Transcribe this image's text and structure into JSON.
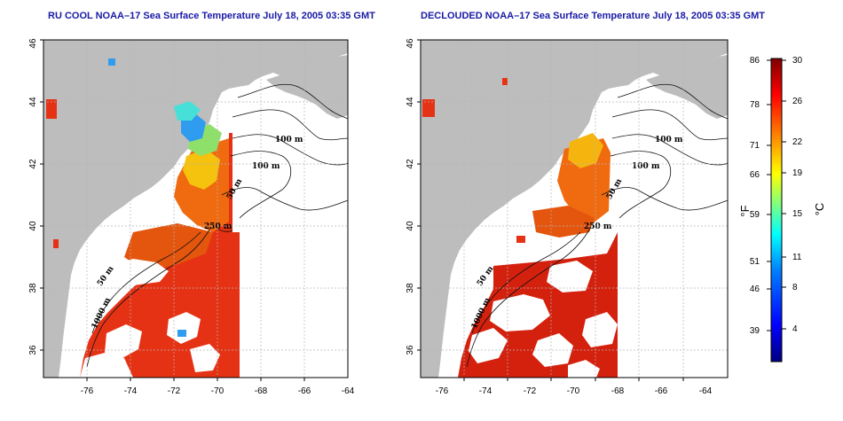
{
  "titles": {
    "left": "RU COOL NOAA–17 Sea Surface Temperature July 18, 2005 03:35 GMT",
    "right": "DECLOUDED NOAA–17 Sea Surface Temperature July 18, 2005 03:35 GMT"
  },
  "map": {
    "lon_range": [
      -77,
      -63
    ],
    "lat_range": [
      35,
      46
    ],
    "x_ticks": [
      "-76",
      "-74",
      "-72",
      "-70",
      "-68",
      "-66",
      "-64"
    ],
    "y_ticks": [
      "36",
      "38",
      "40",
      "42",
      "44",
      "46"
    ],
    "land_color": "#bdbdbd",
    "ocean_color": "#ffffff",
    "grid": "dotted",
    "contour_labels": {
      "c100_top": "100 m",
      "c100_mid": "100 m",
      "c50": "50 m",
      "c250": "250 m",
      "c50_south": "50 m",
      "c1000": "1000 m"
    },
    "data_swath_east_edge_lon": -68
  },
  "colorbar": {
    "fahrenheit_ticks": [
      "86",
      "78",
      "71",
      "66",
      "59",
      "51",
      "46",
      "39"
    ],
    "celsius_ticks": [
      "30",
      "26",
      "22",
      "19",
      "15",
      "11",
      "8",
      "4"
    ],
    "fahrenheit_label": "°F",
    "celsius_label": "°C",
    "range_celsius": [
      0,
      30
    ],
    "colors": [
      "#00007f",
      "#0000ff",
      "#007fff",
      "#00ffff",
      "#7fff7f",
      "#ffff00",
      "#ff7f00",
      "#ff0000",
      "#7f0000"
    ]
  }
}
